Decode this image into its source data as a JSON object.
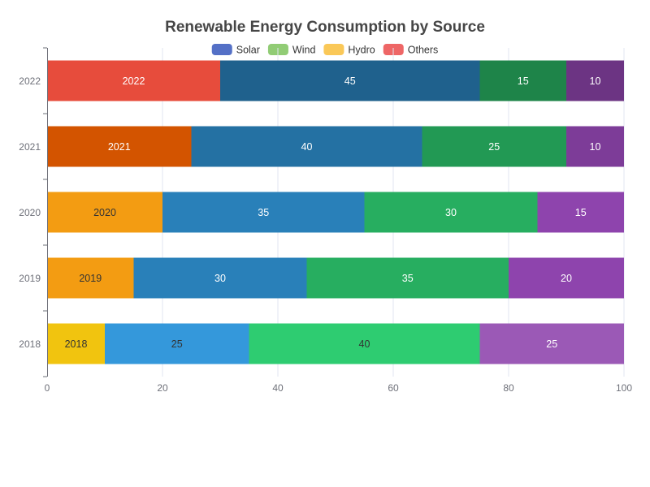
{
  "chart_data": {
    "type": "bar",
    "orientation": "horizontal",
    "stacked": true,
    "title": "Renewable Energy Consumption by Source",
    "categories": [
      "2018",
      "2019",
      "2020",
      "2021",
      "2022"
    ],
    "series": [
      {
        "name": "Solar",
        "values": [
          10,
          15,
          20,
          25,
          30
        ],
        "label_mode": "category"
      },
      {
        "name": "Wind",
        "values": [
          25,
          30,
          35,
          40,
          45
        ],
        "label_mode": "value"
      },
      {
        "name": "Hydro",
        "values": [
          40,
          35,
          30,
          25,
          15
        ],
        "label_mode": "value"
      },
      {
        "name": "Others",
        "values": [
          25,
          20,
          15,
          10,
          10
        ],
        "label_mode": "value"
      }
    ],
    "legend": {
      "position": "top-center",
      "colors": [
        "#5470c6",
        "#91cc75",
        "#fac858",
        "#ee6666"
      ]
    },
    "bar_colors": [
      [
        "#f1c40f",
        "#f39c12",
        "#f39c12",
        "#d35400",
        "#e74c3c"
      ],
      [
        "#3498db",
        "#2980b9",
        "#2980b9",
        "#2471a3",
        "#1f618d"
      ],
      [
        "#2ecc71",
        "#27ae60",
        "#27ae60",
        "#229954",
        "#1e8449"
      ],
      [
        "#9b59b6",
        "#8e44ad",
        "#8e44ad",
        "#7d3c98",
        "#6c3483"
      ]
    ],
    "label_colors": [
      [
        "#333333",
        "#333333",
        "#333333",
        "#ffffff",
        "#ffffff"
      ],
      [
        "#333333",
        "#ffffff",
        "#ffffff",
        "#ffffff",
        "#ffffff"
      ],
      [
        "#333333",
        "#ffffff",
        "#ffffff",
        "#ffffff",
        "#ffffff"
      ],
      [
        "#ffffff",
        "#ffffff",
        "#ffffff",
        "#ffffff",
        "#ffffff"
      ]
    ],
    "xlim": [
      0,
      100
    ],
    "xticks": [
      0,
      20,
      40,
      60,
      80,
      100
    ],
    "xlabel": "",
    "ylabel": "",
    "grid": {
      "vertical": true,
      "color": "#e0e6f1"
    }
  }
}
